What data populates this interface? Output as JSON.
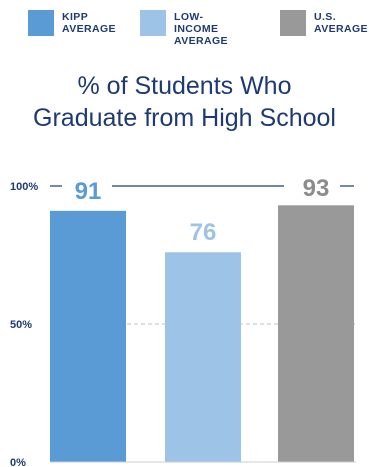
{
  "legend": {
    "items": [
      {
        "label": "KIPP\nAVERAGE",
        "color": "#5b9bd5"
      },
      {
        "label": "LOW-INCOME\nAVERAGE",
        "color": "#9dc3e6"
      },
      {
        "label": "U.S.\nAVERAGE",
        "color": "#999999"
      }
    ]
  },
  "colors": {
    "text": "#1f3a73",
    "value_kipp": "#5b9bd5",
    "value_low_income": "#9dc3e6",
    "value_us": "#8c8c8c"
  },
  "chart_data": {
    "type": "bar",
    "title": "% of Students Who\nGraduate from High School",
    "categories": [
      "KIPP AVERAGE",
      "LOW-INCOME AVERAGE",
      "U.S. AVERAGE"
    ],
    "values": [
      91,
      76,
      93
    ],
    "value_labels": [
      "91",
      "76",
      "93"
    ],
    "ylim": [
      0,
      100
    ],
    "yticks": [
      {
        "value": 100,
        "label": "100%"
      },
      {
        "value": 50,
        "label": "50%"
      },
      {
        "value": 0,
        "label": "0%"
      }
    ],
    "grid": true,
    "legend_position": "top"
  }
}
